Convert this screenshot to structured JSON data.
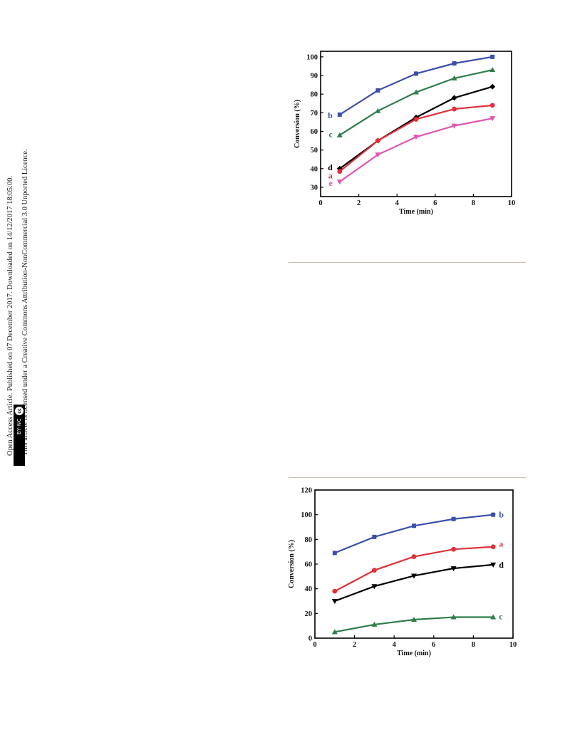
{
  "sidebar": {
    "line1": "Open Access Article. Published on 07 December 2017. Downloaded on 14/12/2017 18:05:00.",
    "line2": "This article is licensed under a Creative Commons Attribution-NonCommercial 3.0 Unported Licence.",
    "badge_cc": "cc",
    "badge_label": "BY-NC"
  },
  "chart_data": [
    {
      "type": "line",
      "title": "",
      "xlabel": "Time (min)",
      "ylabel": "Conversion (%)",
      "xlim": [
        0,
        10
      ],
      "ylim": [
        25,
        103
      ],
      "x_ticks": [
        0,
        2,
        4,
        6,
        8,
        10
      ],
      "y_ticks": [
        30,
        40,
        50,
        60,
        70,
        80,
        90,
        100
      ],
      "grid": false,
      "legend": "inline letter labels left of series",
      "series": [
        {
          "name": "b",
          "color": "#3a4fa8",
          "marker": "square",
          "x": [
            1,
            3,
            5,
            7,
            9
          ],
          "values": [
            69,
            82,
            91,
            96.5,
            100
          ]
        },
        {
          "name": "c",
          "color": "#2e7d4a",
          "marker": "triangle-up",
          "x": [
            1,
            3,
            5,
            7,
            9
          ],
          "values": [
            58,
            71,
            81,
            88.5,
            93
          ]
        },
        {
          "name": "d",
          "color": "#000000",
          "marker": "diamond",
          "x": [
            1,
            3,
            5,
            7,
            9
          ],
          "values": [
            40,
            55,
            67.5,
            78,
            84
          ]
        },
        {
          "name": "a",
          "color": "#e0303a",
          "marker": "circle",
          "x": [
            1,
            3,
            5,
            7,
            9
          ],
          "values": [
            38.5,
            55,
            66.5,
            72,
            74
          ]
        },
        {
          "name": "e",
          "color": "#e055b0",
          "marker": "triangle-down",
          "x": [
            1,
            3,
            5,
            7,
            9
          ],
          "values": [
            33,
            47.5,
            57,
            63,
            67
          ]
        }
      ]
    },
    {
      "type": "line",
      "title": "",
      "xlabel": "Time (min)",
      "ylabel": "Conversion (%)",
      "xlim": [
        0,
        10
      ],
      "ylim": [
        0,
        120
      ],
      "x_ticks": [
        0,
        2,
        4,
        6,
        8,
        10
      ],
      "y_ticks": [
        0,
        20,
        40,
        60,
        80,
        100,
        120
      ],
      "grid": false,
      "legend": "inline letter labels right of series",
      "series": [
        {
          "name": "b",
          "color": "#3a4fa8",
          "marker": "square",
          "x": [
            1,
            3,
            5,
            7,
            9
          ],
          "values": [
            69,
            82,
            91,
            96.5,
            100
          ]
        },
        {
          "name": "a",
          "color": "#e0303a",
          "marker": "circle",
          "x": [
            1,
            3,
            5,
            7,
            9
          ],
          "values": [
            38,
            55,
            66,
            72,
            74
          ]
        },
        {
          "name": "d",
          "color": "#000000",
          "marker": "triangle-down",
          "x": [
            1,
            3,
            5,
            7,
            9
          ],
          "values": [
            30,
            42,
            50.5,
            56.5,
            59.5
          ]
        },
        {
          "name": "c",
          "color": "#2e7d4a",
          "marker": "triangle-up",
          "x": [
            1,
            3,
            5,
            7,
            9
          ],
          "values": [
            5,
            11,
            15,
            17,
            17
          ]
        }
      ]
    }
  ]
}
